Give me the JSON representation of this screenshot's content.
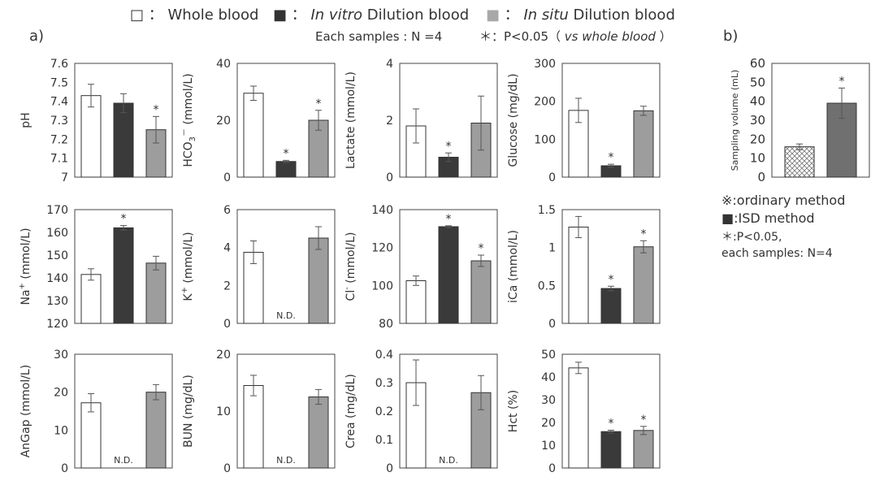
{
  "legend": {
    "items": [
      {
        "marker": "□",
        "sep": "：",
        "pre": "Whole blood",
        "italic": "",
        "post": "",
        "fill": "#ffffff"
      },
      {
        "marker": "■",
        "sep": "：",
        "pre": "",
        "italic": "In vitro",
        "post": " Dilution blood",
        "fill": "#3a3a3a"
      },
      {
        "marker": "■",
        "sep": "：",
        "pre": "",
        "italic": "In situ",
        "post": " Dilution blood",
        "fill": "#9d9d9d"
      }
    ],
    "note_n": "Each samples : N =4",
    "note_p_prefix": "＊：P<0.05（",
    "note_p_italic": "vs whole blood",
    "note_p_suffix": "）"
  },
  "panel_labels": {
    "a": "a)",
    "b": "b)"
  },
  "colors": {
    "whole": "#ffffff",
    "vitro": "#3a3a3a",
    "situ": "#9d9d9d",
    "ordinary_hatch": "#777777",
    "isd": "#707070"
  },
  "nd_label": "N.D.",
  "star": "*",
  "chart_data": [
    {
      "id": "ph",
      "type": "bar",
      "ylabel": "pH",
      "sup": "",
      "ylabel_suffix": "",
      "ylim": [
        7,
        7.6
      ],
      "ticks": [
        "7",
        "7.1",
        "7.2",
        "7.3",
        "7.4",
        "7.5",
        "7.6"
      ],
      "series": [
        {
          "value": 7.43,
          "err": 0.06,
          "star": false,
          "nd": false
        },
        {
          "value": 7.39,
          "err": 0.05,
          "star": false,
          "nd": false
        },
        {
          "value": 7.25,
          "err": 0.07,
          "star": true,
          "nd": false
        }
      ]
    },
    {
      "id": "hco3",
      "type": "bar",
      "ylabel": "HCO",
      "sub": "3",
      "sup": "－",
      "ylabel_suffix": " (mmol/L)",
      "ylim": [
        0,
        40
      ],
      "ticks": [
        "0",
        "20",
        "40"
      ],
      "series": [
        {
          "value": 29.5,
          "err": 2.5,
          "star": false,
          "nd": false
        },
        {
          "value": 5.5,
          "err": 0.4,
          "star": true,
          "nd": false
        },
        {
          "value": 20,
          "err": 3.5,
          "star": true,
          "nd": false
        }
      ]
    },
    {
      "id": "lactate",
      "type": "bar",
      "ylabel": "Lactate (mmol/L)",
      "sup": "",
      "ylabel_suffix": "",
      "ylim": [
        0,
        4
      ],
      "ticks": [
        "0",
        "2",
        "4"
      ],
      "series": [
        {
          "value": 1.8,
          "err": 0.6,
          "star": false,
          "nd": false
        },
        {
          "value": 0.7,
          "err": 0.15,
          "star": true,
          "nd": false
        },
        {
          "value": 1.9,
          "err": 0.95,
          "star": false,
          "nd": false
        }
      ]
    },
    {
      "id": "glucose",
      "type": "bar",
      "ylabel": "Glucose (mg/dL)",
      "sup": "",
      "ylabel_suffix": "",
      "ylim": [
        0,
        300
      ],
      "ticks": [
        "0",
        "100",
        "200",
        "300"
      ],
      "series": [
        {
          "value": 176,
          "err": 32,
          "star": false,
          "nd": false
        },
        {
          "value": 30,
          "err": 4,
          "star": true,
          "nd": false
        },
        {
          "value": 175,
          "err": 12,
          "star": false,
          "nd": false
        }
      ]
    },
    {
      "id": "na",
      "type": "bar",
      "ylabel": "Na",
      "sup": "+",
      "ylabel_suffix": " (mmol/L)",
      "ylim": [
        120,
        170
      ],
      "ticks": [
        "120",
        "130",
        "140",
        "150",
        "160",
        "170"
      ],
      "series": [
        {
          "value": 141.5,
          "err": 2.5,
          "star": false,
          "nd": false
        },
        {
          "value": 162,
          "err": 1,
          "star": true,
          "nd": false
        },
        {
          "value": 146.5,
          "err": 3,
          "star": false,
          "nd": false
        }
      ]
    },
    {
      "id": "k",
      "type": "bar",
      "ylabel": "K",
      "sup": "+",
      "ylabel_suffix": " (mmol/L)",
      "ylim": [
        0,
        6
      ],
      "ticks": [
        "0",
        "2",
        "4",
        "6"
      ],
      "series": [
        {
          "value": 3.75,
          "err": 0.6,
          "star": false,
          "nd": false
        },
        {
          "value": 0,
          "err": 0,
          "star": false,
          "nd": true
        },
        {
          "value": 4.5,
          "err": 0.6,
          "star": false,
          "nd": false
        }
      ]
    },
    {
      "id": "cl",
      "type": "bar",
      "ylabel": "Cl",
      "sup": "-",
      "ylabel_suffix": " (mmol/L)",
      "ylim": [
        80,
        140
      ],
      "ticks": [
        "80",
        "100",
        "120",
        "140"
      ],
      "series": [
        {
          "value": 102.5,
          "err": 2.5,
          "star": false,
          "nd": false
        },
        {
          "value": 131,
          "err": 0.5,
          "star": true,
          "nd": false
        },
        {
          "value": 113,
          "err": 3,
          "star": true,
          "nd": false
        }
      ]
    },
    {
      "id": "ica",
      "type": "bar",
      "ylabel": "iCa (mmol/L)",
      "sup": "",
      "ylabel_suffix": "",
      "ylim": [
        0,
        1.5
      ],
      "ticks": [
        "0",
        "0.5",
        "1",
        "1.5"
      ],
      "series": [
        {
          "value": 1.27,
          "err": 0.14,
          "star": false,
          "nd": false
        },
        {
          "value": 0.46,
          "err": 0.03,
          "star": true,
          "nd": false
        },
        {
          "value": 1.01,
          "err": 0.08,
          "star": true,
          "nd": false
        }
      ]
    },
    {
      "id": "angap",
      "type": "bar",
      "ylabel": "AnGap (mmol/L)",
      "sup": "",
      "ylabel_suffix": "",
      "ylim": [
        0,
        30
      ],
      "ticks": [
        "0",
        "10",
        "20",
        "30"
      ],
      "series": [
        {
          "value": 17.2,
          "err": 2.4,
          "star": false,
          "nd": false
        },
        {
          "value": 0,
          "err": 0,
          "star": false,
          "nd": true
        },
        {
          "value": 20,
          "err": 2,
          "star": false,
          "nd": false
        }
      ]
    },
    {
      "id": "bun",
      "type": "bar",
      "ylabel": "BUN (mg/dL)",
      "sup": "",
      "ylabel_suffix": "",
      "ylim": [
        0,
        20
      ],
      "ticks": [
        "0",
        "10",
        "20"
      ],
      "series": [
        {
          "value": 14.5,
          "err": 1.8,
          "star": false,
          "nd": false
        },
        {
          "value": 0,
          "err": 0,
          "star": false,
          "nd": true
        },
        {
          "value": 12.5,
          "err": 1.3,
          "star": false,
          "nd": false
        }
      ]
    },
    {
      "id": "crea",
      "type": "bar",
      "ylabel": "Crea (mg/dL)",
      "sup": "",
      "ylabel_suffix": "",
      "ylim": [
        0,
        0.4
      ],
      "ticks": [
        "0",
        "0.1",
        "0.2",
        "0.3",
        "0.4"
      ],
      "series": [
        {
          "value": 0.3,
          "err": 0.08,
          "star": false,
          "nd": false
        },
        {
          "value": 0,
          "err": 0,
          "star": false,
          "nd": true
        },
        {
          "value": 0.265,
          "err": 0.06,
          "star": false,
          "nd": false
        }
      ]
    },
    {
      "id": "hct",
      "type": "bar",
      "ylabel": "Hct (%)",
      "sup": "",
      "ylabel_suffix": "",
      "ylim": [
        0,
        50
      ],
      "ticks": [
        "0",
        "10",
        "20",
        "30",
        "40",
        "50"
      ],
      "series": [
        {
          "value": 44,
          "err": 2.5,
          "star": false,
          "nd": false
        },
        {
          "value": 16,
          "err": 0.6,
          "star": true,
          "nd": false
        },
        {
          "value": 16.5,
          "err": 1.8,
          "star": true,
          "nd": false
        }
      ]
    },
    {
      "id": "volume",
      "type": "bar",
      "ylabel": "Sampling volume (mL)",
      "sup": "",
      "ylabel_suffix": "",
      "ylim": [
        0,
        60
      ],
      "ticks": [
        "0",
        "10",
        "20",
        "30",
        "40",
        "50",
        "60"
      ],
      "categories": [
        "ordinary method",
        "ISD method"
      ],
      "series": [
        {
          "value": 16,
          "err": 1.5,
          "star": false,
          "nd": false
        },
        {
          "value": 39,
          "err": 8,
          "star": true,
          "nd": false
        }
      ]
    }
  ],
  "volume_legend": {
    "ordinary": "※:ordinary method",
    "isd": "■:ISD method",
    "p": "＊:P<0.05,",
    "n": "each samples: N=4"
  }
}
